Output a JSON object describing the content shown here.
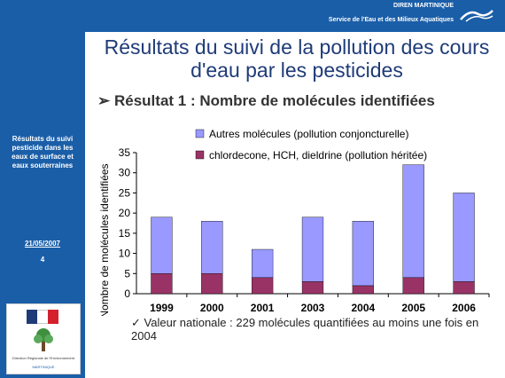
{
  "header": {
    "organization": "DIREN MARTINIQUE",
    "service": "Service de l'Eau et des Milieux Aquatiques"
  },
  "sidebar": {
    "topic": "Résultats du suivi pesticide dans les eaux de surface et eaux souterraines",
    "date": "21/05/2007",
    "page_number": "4",
    "logo_text": "Direction Régionale de l'Environnement",
    "logo_subtext": "MARTINIQUE"
  },
  "slide": {
    "title": "Résultats du suivi de la pollution des cours d'eau par les pesticides",
    "subtitle_bullet": "➢",
    "subtitle": "Résultat 1 : Nombre de molécules identifiées",
    "note_bullet": "✓",
    "note": "Valeur nationale : 229 molécules quantifiées au moins une fois en 2004"
  },
  "colors": {
    "primary_blue": "#1a5ea8",
    "title_blue": "#1f3b78",
    "series_heritage": "#993366",
    "series_conjoncturelle": "#9999ff"
  },
  "chart_data": {
    "type": "bar",
    "stacked": true,
    "categories": [
      "1999",
      "2000",
      "2001",
      "2003",
      "2004",
      "2005",
      "2006"
    ],
    "series": [
      {
        "name": "chlordecone, HCH, dieldrine (pollution héritée)",
        "values": [
          5,
          5,
          4,
          3,
          2,
          4,
          3
        ],
        "color": "#993366"
      },
      {
        "name": "Autres molécules (pollution conjoncturelle)",
        "values": [
          14,
          13,
          7,
          16,
          16,
          28,
          22
        ],
        "color": "#9999ff"
      }
    ],
    "ylabel": "Nombre de molécules identifiées",
    "ylim": [
      0,
      35
    ],
    "yticks": [
      "0",
      "5",
      "10",
      "15",
      "20",
      "25",
      "30",
      "35"
    ],
    "grid": false,
    "legend": "top-right"
  }
}
